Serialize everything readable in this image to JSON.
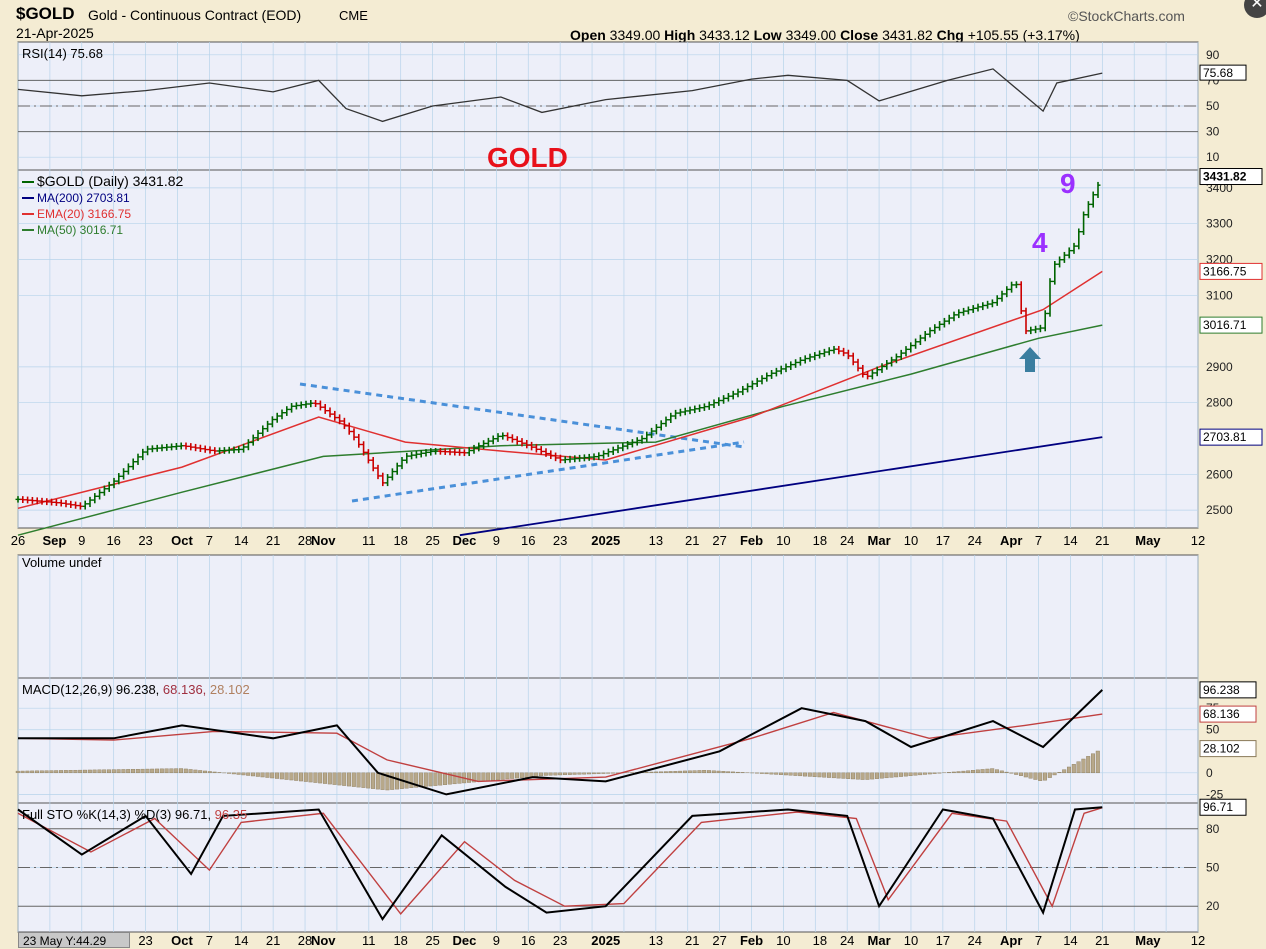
{
  "header": {
    "symbol": "$GOLD",
    "name": "Gold - Continuous Contract (EOD)",
    "exchange": "CME",
    "date": "21-Apr-2025",
    "brand": "©StockCharts.com",
    "open_label": "Open",
    "open": "3349.00",
    "high_label": "High",
    "high": "3433.12",
    "low_label": "Low",
    "low": "3349.00",
    "close_label": "Close",
    "close": "3431.82",
    "chg_label": "Chg",
    "chg": "+105.55 (+3.17%)"
  },
  "close_icon": "close-icon",
  "cursor_readout": "23 May Y:44.29",
  "colors": {
    "background": "#f4ecd3",
    "plot": "#edeff9",
    "grid": "#b7d3ea",
    "up": "#006400",
    "down": "#cc0000",
    "ma200": "#000080",
    "ema20": "#e03030",
    "ma50": "#2e7d2e",
    "trendline": "#4a90d9",
    "annotation_purple": "#9b30ff",
    "arrow": "#3a7ea0"
  },
  "chart_data": [
    {
      "type": "line",
      "title": "RSI(14) 75.68",
      "series": [
        {
          "name": "RSI(14)",
          "x": [
            "2024-08-26",
            "2024-09-09",
            "2024-09-23",
            "2024-10-07",
            "2024-10-21",
            "2024-10-31",
            "2024-11-06",
            "2024-11-14",
            "2024-11-25",
            "2024-12-10",
            "2024-12-19",
            "2025-01-02",
            "2025-01-21",
            "2025-02-03",
            "2025-02-11",
            "2025-02-24",
            "2025-03-03",
            "2025-03-18",
            "2025-03-28",
            "2025-04-08",
            "2025-04-11",
            "2025-04-21"
          ],
          "values": [
            63,
            58,
            62,
            68,
            61,
            70,
            48,
            38,
            50,
            57,
            45,
            55,
            62,
            71,
            74,
            70,
            54,
            70,
            79,
            46,
            68,
            75.68
          ]
        }
      ],
      "ylim": [
        0,
        100
      ],
      "yticks": [
        "90",
        "70",
        "50",
        "30",
        "10"
      ],
      "bands": [
        70,
        30
      ],
      "last_label": "75.68"
    },
    {
      "type": "bar",
      "subtype": "ohlc",
      "title": "$GOLD (Daily) 3431.82",
      "annotation_title": "GOLD",
      "annotations": [
        "4",
        "9"
      ],
      "legend": [
        {
          "name": "$GOLD (Daily) 3431.82",
          "color": "#006400"
        },
        {
          "name": "MA(200) 2703.81",
          "color": "#000080"
        },
        {
          "name": "EMA(20) 3166.75",
          "color": "#e03030"
        },
        {
          "name": "MA(50) 3016.71",
          "color": "#2e7d2e"
        }
      ],
      "close_series": {
        "x": [
          "2024-08-26",
          "2024-09-04",
          "2024-09-09",
          "2024-09-16",
          "2024-09-23",
          "2024-10-01",
          "2024-10-08",
          "2024-10-14",
          "2024-10-21",
          "2024-10-25",
          "2024-10-30",
          "2024-11-05",
          "2024-11-08",
          "2024-11-14",
          "2024-11-19",
          "2024-11-25",
          "2024-12-02",
          "2024-12-10",
          "2024-12-16",
          "2024-12-23",
          "2024-12-31",
          "2025-01-10",
          "2025-01-17",
          "2025-01-24",
          "2025-01-31",
          "2025-02-07",
          "2025-02-14",
          "2025-02-21",
          "2025-02-24",
          "2025-02-28",
          "2025-03-07",
          "2025-03-14",
          "2025-03-20",
          "2025-03-28",
          "2025-04-02",
          "2025-04-04",
          "2025-04-08",
          "2025-04-10",
          "2025-04-15",
          "2025-04-17",
          "2025-04-21"
        ],
        "values": [
          2530,
          2520,
          2510,
          2580,
          2670,
          2680,
          2665,
          2670,
          2755,
          2790,
          2800,
          2745,
          2700,
          2575,
          2650,
          2665,
          2660,
          2710,
          2680,
          2640,
          2650,
          2700,
          2770,
          2790,
          2830,
          2880,
          2920,
          2950,
          2935,
          2870,
          2930,
          3000,
          3050,
          3080,
          3140,
          3000,
          3010,
          3180,
          3240,
          3330,
          3431.82
        ]
      },
      "last_bars": {
        "high": 3433.12,
        "low": 3349.0,
        "open": 3349.0,
        "close": 3431.82
      },
      "ma200": {
        "x": [
          "2024-12-01",
          "2025-04-21"
        ],
        "values": [
          2430,
          2703.81
        ]
      },
      "ema20": {
        "x": [
          "2024-08-26",
          "2024-10-01",
          "2024-10-31",
          "2024-11-19",
          "2024-12-10",
          "2025-01-02",
          "2025-02-03",
          "2025-03-03",
          "2025-04-08",
          "2025-04-21"
        ],
        "values": [
          2505,
          2620,
          2760,
          2690,
          2665,
          2640,
          2760,
          2900,
          3060,
          3166.75
        ]
      },
      "ma50": {
        "x": [
          "2024-08-26",
          "2024-10-01",
          "2024-11-01",
          "2024-12-10",
          "2025-01-13",
          "2025-02-10",
          "2025-03-10",
          "2025-04-07",
          "2025-04-21"
        ],
        "values": [
          2430,
          2550,
          2650,
          2680,
          2690,
          2790,
          2880,
          2980,
          3016.71
        ]
      },
      "ylim": [
        2450,
        3450
      ],
      "yticks": [
        "3400",
        "3300",
        "3200",
        "3100",
        "2900",
        "2800",
        "2600",
        "2500"
      ],
      "right_labels": [
        "3431.82",
        "3166.75",
        "3016.71",
        "2703.81"
      ],
      "xticks": [
        "26",
        "Sep",
        "9",
        "16",
        "23",
        "Oct",
        "7",
        "14",
        "21",
        "28",
        "Nov",
        "11",
        "18",
        "25",
        "Dec",
        "9",
        "16",
        "23",
        "2025",
        "13",
        "21",
        "27",
        "Feb",
        "10",
        "18",
        "24",
        "Mar",
        "10",
        "17",
        "24",
        "Apr",
        "7",
        "14",
        "21",
        "May",
        "12"
      ],
      "trendlines": [
        "upper",
        "lower"
      ]
    },
    {
      "type": "bar",
      "title": "Volume undef"
    },
    {
      "type": "line",
      "title": "MACD(12,26,9) 96.238, 68.136, 28.102",
      "label_parts": [
        "MACD(12,26,9) 96.238,",
        "68.136,",
        "28.102"
      ],
      "series": [
        {
          "name": "MACD",
          "x": [
            "2024-08-26",
            "2024-09-16",
            "2024-10-01",
            "2024-10-21",
            "2024-11-04",
            "2024-11-13",
            "2024-11-28",
            "2024-12-17",
            "2025-01-02",
            "2025-01-27",
            "2025-02-14",
            "2025-02-28",
            "2025-03-10",
            "2025-03-28",
            "2025-04-08",
            "2025-04-21"
          ],
          "values": [
            40,
            40,
            55,
            40,
            55,
            0,
            -25,
            -5,
            -10,
            25,
            75,
            60,
            30,
            60,
            30,
            96.238
          ]
        },
        {
          "name": "Signal",
          "x": [
            "2024-08-26",
            "2024-09-16",
            "2024-10-08",
            "2024-11-04",
            "2024-11-15",
            "2024-12-05",
            "2025-01-02",
            "2025-02-03",
            "2025-02-21",
            "2025-03-14",
            "2025-04-04",
            "2025-04-21"
          ],
          "values": [
            40,
            38,
            48,
            46,
            15,
            -10,
            -5,
            40,
            70,
            40,
            55,
            68.136
          ]
        },
        {
          "name": "Histogram",
          "x": [
            "2024-08-26",
            "2024-10-01",
            "2024-11-15",
            "2024-12-20",
            "2025-01-24",
            "2025-02-28",
            "2025-03-28",
            "2025-04-08",
            "2025-04-21"
          ],
          "values": [
            2,
            5,
            -20,
            -3,
            3,
            -8,
            5,
            -10,
            28.102
          ]
        }
      ],
      "yticks": [
        "75",
        "50",
        "0",
        "-25"
      ],
      "right_labels": [
        "96.238",
        "68.136",
        "28.102"
      ]
    },
    {
      "type": "line",
      "title": "Full STO %K(14,3) %D(3) 96.71, 96.35",
      "label_parts": [
        "Full STO %K(14,3) %D(3) 96.71,",
        "96.35"
      ],
      "series": [
        {
          "name": "%K",
          "x": [
            "2024-08-26",
            "2024-09-09",
            "2024-09-23",
            "2024-10-03",
            "2024-10-10",
            "2024-10-31",
            "2024-11-14",
            "2024-11-27",
            "2024-12-11",
            "2024-12-20",
            "2025-01-02",
            "2025-01-21",
            "2025-02-11",
            "2025-02-24",
            "2025-03-03",
            "2025-03-17",
            "2025-03-28",
            "2025-04-08",
            "2025-04-15",
            "2025-04-21"
          ],
          "values": [
            95,
            60,
            90,
            45,
            90,
            95,
            10,
            75,
            35,
            15,
            20,
            90,
            95,
            90,
            20,
            95,
            88,
            15,
            95,
            96.71
          ]
        },
        {
          "name": "%D",
          "x": [
            "2024-08-26",
            "2024-09-11",
            "2024-09-25",
            "2024-10-07",
            "2024-10-14",
            "2024-11-01",
            "2024-11-18",
            "2024-12-02",
            "2024-12-13",
            "2024-12-24",
            "2025-01-06",
            "2025-01-23",
            "2025-02-13",
            "2025-02-26",
            "2025-03-05",
            "2025-03-19",
            "2025-03-31",
            "2025-04-10",
            "2025-04-17",
            "2025-04-21"
          ],
          "values": [
            92,
            62,
            88,
            48,
            85,
            92,
            14,
            70,
            40,
            20,
            22,
            85,
            93,
            88,
            25,
            92,
            86,
            20,
            92,
            96.35
          ]
        }
      ],
      "ylim": [
        0,
        100
      ],
      "yticks": [
        "80",
        "50",
        "20"
      ],
      "bands": [
        80,
        20
      ],
      "right_labels": [
        "96.71"
      ]
    }
  ]
}
